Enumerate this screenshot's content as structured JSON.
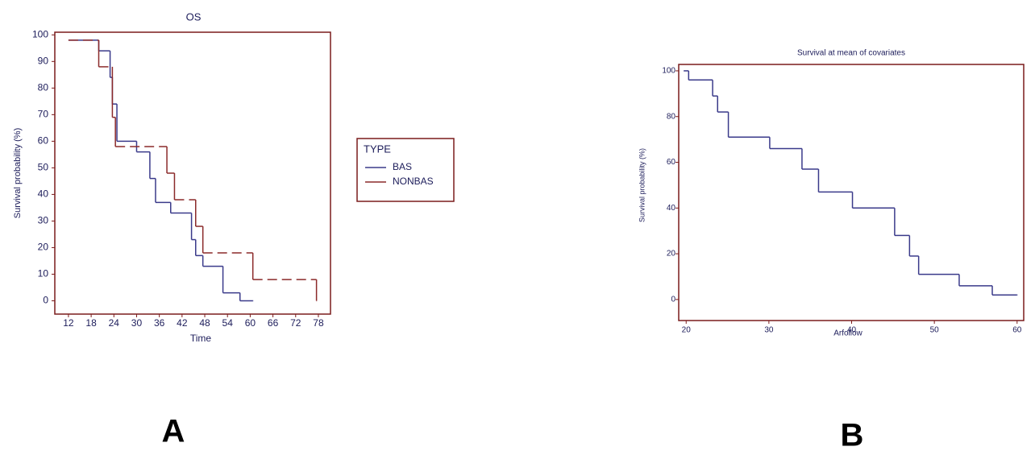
{
  "chart_data": [
    {
      "type": "step",
      "title": "OS",
      "x_label": "Time",
      "y_label": "Survival probability (%)",
      "panel_label": "A",
      "xlim": [
        8.4,
        81.2
      ],
      "ylim": [
        -5,
        101
      ],
      "xticks": [
        12,
        18,
        24,
        30,
        36,
        42,
        48,
        54,
        60,
        66,
        72,
        78
      ],
      "yticks": [
        0,
        10,
        20,
        30,
        40,
        50,
        60,
        70,
        80,
        90,
        100
      ],
      "legend_title": "TYPE",
      "series": [
        {
          "name": "BAS",
          "color": "#3a3a8a",
          "line_style": "solid",
          "x": [
            12,
            20,
            23,
            23.6,
            24.8,
            30,
            33.5,
            35,
            39,
            44.5,
            45.6,
            47.5,
            52.8,
            57.3,
            60.7
          ],
          "values": [
            98,
            94,
            84,
            74,
            60,
            56,
            46,
            37,
            33,
            23,
            17,
            13,
            3,
            0,
            0
          ]
        },
        {
          "name": "NONBAS",
          "color": "#8b2a2a",
          "line_style": "dashed",
          "x": [
            12,
            20,
            23.6,
            24.4,
            38,
            40,
            45.6,
            47.5,
            60.7,
            77.5
          ],
          "values": [
            98,
            88,
            69,
            58,
            48,
            38,
            28,
            18,
            8,
            0
          ]
        }
      ]
    },
    {
      "type": "step",
      "title": "Survival at mean of covariates",
      "x_label": "Arfollow",
      "y_label": "Survival probability (%)",
      "panel_label": "B",
      "xlim": [
        19.1,
        60.8
      ],
      "ylim": [
        -9.2,
        102.8
      ],
      "xticks": [
        20,
        30,
        40,
        50,
        60
      ],
      "yticks": [
        0,
        20,
        40,
        60,
        80,
        100
      ],
      "series": [
        {
          "color": "#3a3a8a",
          "line_style": "solid",
          "x": [
            19.7,
            20.3,
            23.2,
            23.8,
            25.1,
            30.1,
            34,
            36,
            40.1,
            45.2,
            47,
            48.1,
            53,
            57,
            60
          ],
          "values": [
            100,
            96,
            89,
            82,
            71,
            66,
            57,
            47,
            40,
            28,
            19,
            11,
            6,
            2,
            2
          ]
        }
      ]
    }
  ]
}
